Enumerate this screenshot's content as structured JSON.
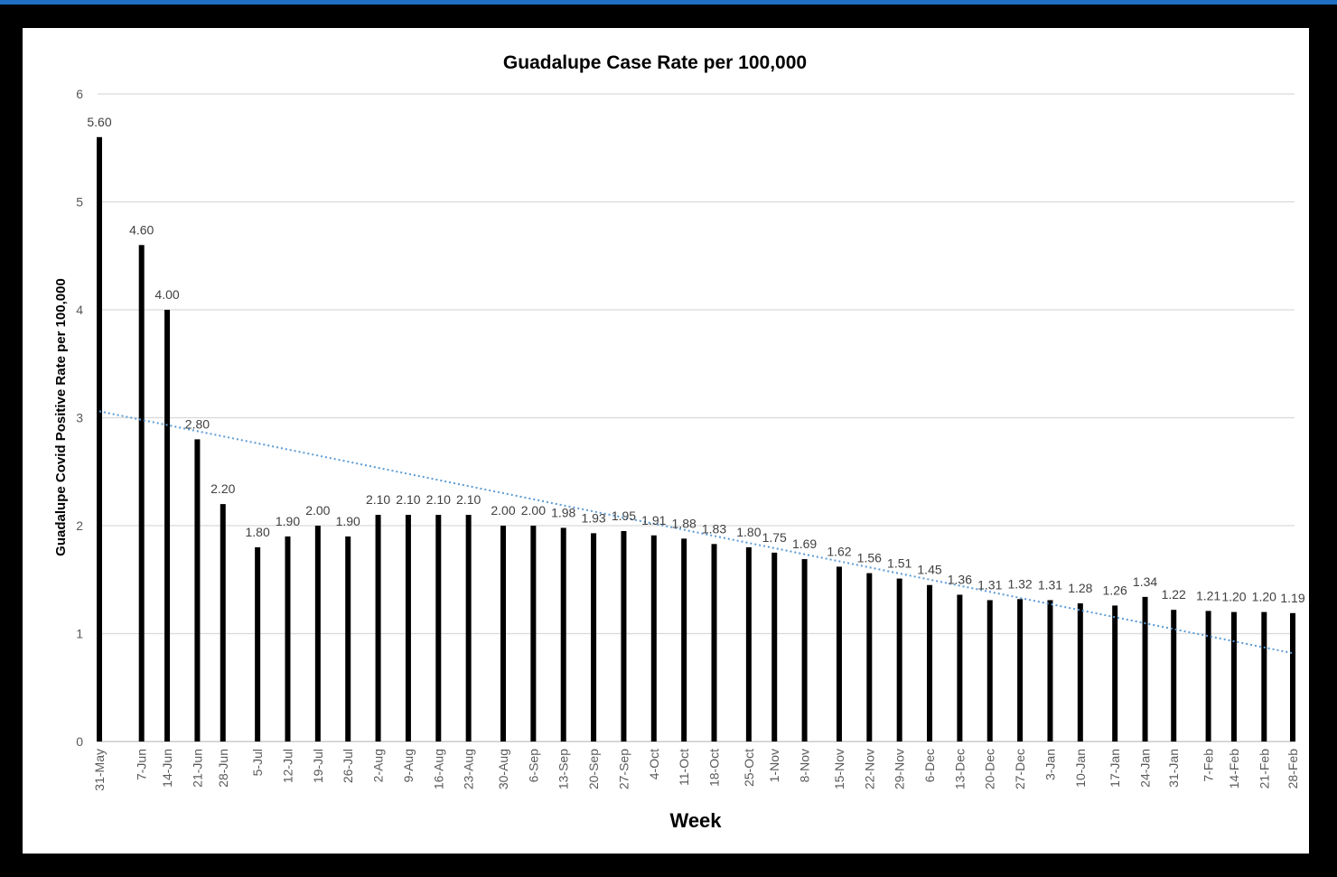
{
  "colors": {
    "topbar": "#1f6fc4",
    "background": "#000000",
    "bars": "#000000",
    "trendline": "#5b9bd5",
    "grid": "#d9d9d9"
  },
  "chart_data": {
    "type": "bar",
    "title": "Guadalupe Case Rate per 100,000",
    "xlabel": "Week",
    "ylabel": "Guadalupe Covid Positive Rate per 100,000",
    "ylim": [
      0,
      6
    ],
    "yticks": [
      0,
      1,
      2,
      3,
      4,
      5,
      6
    ],
    "grid": true,
    "legend": "none",
    "trendline": {
      "type": "linear",
      "style": "dotted"
    },
    "categories": [
      "31-May",
      "7-Jun",
      "14-Jun",
      "21-Jun",
      "28-Jun",
      "5-Jul",
      "12-Jul",
      "19-Jul",
      "26-Jul",
      "2-Aug",
      "9-Aug",
      "16-Aug",
      "23-Aug",
      "30-Aug",
      "6-Sep",
      "13-Sep",
      "20-Sep",
      "27-Sep",
      "4-Oct",
      "11-Oct",
      "18-Oct",
      "25-Oct",
      "1-Nov",
      "8-Nov",
      "15-Nov",
      "22-Nov",
      "29-Nov",
      "6-Dec",
      "13-Dec",
      "20-Dec",
      "27-Dec",
      "3-Jan",
      "10-Jan",
      "17-Jan",
      "24-Jan",
      "31-Jan",
      "7-Feb",
      "14-Feb",
      "21-Feb",
      "28-Feb"
    ],
    "bars": [
      {
        "x": "31-May",
        "v": 5.6,
        "label": "5.60"
      },
      {
        "x": "7-Jun",
        "v": 4.6,
        "label": "4.60"
      },
      {
        "x": "14-Jun",
        "v": 4.0,
        "label": "4.00"
      },
      {
        "x": "21-Jun",
        "v": 2.8,
        "label": "2.80"
      },
      {
        "x": "28-Jun",
        "v": 2.2,
        "label": "2.20"
      },
      {
        "x": "5-Jul",
        "v": 1.8,
        "label": "1.80"
      },
      {
        "x": "12-Jul",
        "v": 1.9,
        "label": "1.90"
      },
      {
        "x": "19-Jul",
        "v": 2.0,
        "label": "2.00"
      },
      {
        "x": "26-Jul",
        "v": 1.9,
        "label": "1.90"
      },
      {
        "x": "2-Aug",
        "v": 2.1,
        "label": "2.10"
      },
      {
        "x": "9-Aug",
        "v": 2.1,
        "label": "2.10"
      },
      {
        "x": "16-Aug",
        "v": 2.1,
        "label": "2.10"
      },
      {
        "x": "23-Aug",
        "v": 2.1,
        "label": "2.10"
      },
      {
        "x": "30-Aug",
        "v": 2.0,
        "label": "2.00"
      },
      {
        "x": "6-Sep",
        "v": 2.0,
        "label": "2.00"
      },
      {
        "x": "13-Sep",
        "v": 1.98,
        "label": "1.98"
      },
      {
        "x": "20-Sep",
        "v": 1.93,
        "label": "1.93"
      },
      {
        "x": "27-Sep",
        "v": 1.95,
        "label": "1.95"
      },
      {
        "x": "4-Oct",
        "v": 1.91,
        "label": "1.91"
      },
      {
        "x": "11-Oct",
        "v": 1.88,
        "label": "1.88"
      },
      {
        "x": "18-Oct",
        "v": 1.83,
        "label": "1.83"
      },
      {
        "x": "25-Oct",
        "v": 1.8,
        "label": "1.80"
      },
      {
        "x": "1-Nov",
        "v": 1.75,
        "label": "1.75"
      },
      {
        "x": "8-Nov",
        "v": 1.69,
        "label": "1.69"
      },
      {
        "x": "15-Nov",
        "v": 1.62,
        "label": "1.62"
      },
      {
        "x": "22-Nov",
        "v": 1.56,
        "label": "1.56"
      },
      {
        "x": "29-Nov",
        "v": 1.51,
        "label": "1.51"
      },
      {
        "x": "6-Dec",
        "v": 1.45,
        "label": "1.45"
      },
      {
        "x": "13-Dec",
        "v": 1.36,
        "label": "1.36"
      },
      {
        "x": "20-Dec",
        "v": 1.31,
        "label": "1.31"
      },
      {
        "x": "27-Dec",
        "v": 1.32,
        "label": "1.32"
      },
      {
        "x": "3-Jan",
        "v": 1.31,
        "label": "1.31"
      },
      {
        "x": "10-Jan",
        "v": 1.28,
        "label": "1.28"
      },
      {
        "x": "17-Jan",
        "v": 1.26,
        "label": "1.26"
      },
      {
        "x": "24-Jan",
        "v": 1.34,
        "label": "1.34"
      },
      {
        "x": "31-Jan",
        "v": 1.22,
        "label": "1.22"
      },
      {
        "x": "7-Feb",
        "v": 1.21,
        "label": "1.21"
      },
      {
        "x": "14-Feb",
        "v": 1.2,
        "label": "1.20"
      },
      {
        "x": "21-Feb",
        "v": 1.2,
        "label": "1.20"
      },
      {
        "x": "28-Feb",
        "v": 1.19,
        "label": "1.19"
      }
    ]
  }
}
